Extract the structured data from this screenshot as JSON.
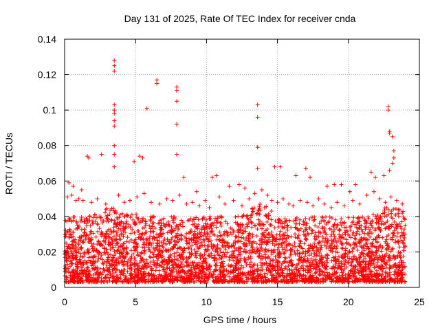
{
  "chart_data": {
    "type": "scatter",
    "title": "Day 131 of 2025, Rate Of TEC Index for receiver cnda",
    "xlabel": "GPS time / hours",
    "ylabel": "ROTI / TECUs",
    "xlim": [
      0,
      25
    ],
    "ylim": [
      0,
      0.14
    ],
    "xticks": [
      0,
      5,
      10,
      15,
      20,
      25
    ],
    "xtick_labels": [
      "0",
      "5",
      "10",
      "15",
      "20",
      "25"
    ],
    "yticks": [
      0,
      0.02,
      0.04,
      0.06,
      0.08,
      0.1,
      0.12,
      0.14
    ],
    "ytick_labels": [
      "0",
      "0.02",
      "0.04",
      "0.06",
      "0.08",
      "0.1",
      "0.12",
      "0.14"
    ],
    "grid": true,
    "marker": "plus",
    "color": "#ff0000",
    "series": [
      {
        "name": "ROTI",
        "x": [
          3.5,
          3.5,
          3.5,
          3.5,
          3.5,
          3.5,
          3.5,
          3.5,
          3.5,
          3.5,
          3.5,
          6.5,
          6.5,
          5.8,
          7.9,
          7.9,
          7.9,
          7.9,
          7.9,
          13.6,
          13.6,
          13.6,
          13.6,
          22.8,
          22.8,
          22.9,
          22.9,
          23.1,
          23.2,
          23.2,
          23.1,
          22.9,
          1.6,
          1.7,
          2.6,
          5.5,
          5.3,
          4.9,
          10.7,
          10.4,
          12.3,
          14.8,
          15.2,
          16.3,
          17.0,
          17.3,
          18.5,
          19.5,
          20.5,
          21.6,
          21.9,
          22.5,
          0.3,
          0.6,
          1.2,
          8.4,
          9.3,
          11.6,
          12.7,
          19.0,
          20.1,
          0.2,
          0.5,
          0.8,
          1.0,
          1.3,
          1.9,
          2.3,
          2.9,
          3.8,
          4.2,
          4.6,
          5.1,
          5.6,
          6.1,
          6.7,
          7.2,
          7.6,
          8.1,
          8.6,
          9.0,
          9.5,
          9.9,
          10.2,
          10.9,
          11.3,
          11.9,
          12.5,
          13.0,
          13.4,
          13.9,
          14.3,
          14.6,
          15.0,
          15.4,
          15.8,
          16.1,
          16.6,
          17.1,
          17.5,
          17.9,
          18.3,
          18.8,
          19.2,
          19.7,
          20.3,
          20.8,
          21.3,
          21.8,
          22.2,
          22.6,
          23.0,
          23.4,
          23.8
        ],
        "y": [
          0.128,
          0.125,
          0.122,
          0.103,
          0.1,
          0.098,
          0.094,
          0.091,
          0.08,
          0.075,
          0.068,
          0.117,
          0.115,
          0.101,
          0.113,
          0.111,
          0.105,
          0.092,
          0.075,
          0.103,
          0.096,
          0.079,
          0.067,
          0.102,
          0.1,
          0.088,
          0.087,
          0.085,
          0.077,
          0.073,
          0.07,
          0.066,
          0.074,
          0.073,
          0.075,
          0.073,
          0.074,
          0.071,
          0.063,
          0.062,
          0.058,
          0.068,
          0.068,
          0.063,
          0.067,
          0.062,
          0.057,
          0.058,
          0.058,
          0.065,
          0.062,
          0.063,
          0.059,
          0.057,
          0.055,
          0.062,
          0.054,
          0.057,
          0.056,
          0.058,
          0.054,
          0.051,
          0.052,
          0.049,
          0.05,
          0.049,
          0.048,
          0.05,
          0.047,
          0.052,
          0.048,
          0.049,
          0.051,
          0.053,
          0.048,
          0.047,
          0.05,
          0.049,
          0.052,
          0.047,
          0.048,
          0.046,
          0.049,
          0.045,
          0.051,
          0.047,
          0.049,
          0.046,
          0.05,
          0.053,
          0.055,
          0.052,
          0.049,
          0.048,
          0.05,
          0.047,
          0.046,
          0.049,
          0.048,
          0.046,
          0.05,
          0.047,
          0.045,
          0.048,
          0.046,
          0.049,
          0.047,
          0.052,
          0.054,
          0.05,
          0.048,
          0.051,
          0.049,
          0.047
        ]
      }
    ],
    "dense_band": {
      "description_values": "bulk of points between y=0.005 and y=0.045 across x=0 to 24",
      "x_range": [
        0,
        24
      ],
      "y_min": 0.003,
      "y_typical_max": 0.04
    }
  }
}
